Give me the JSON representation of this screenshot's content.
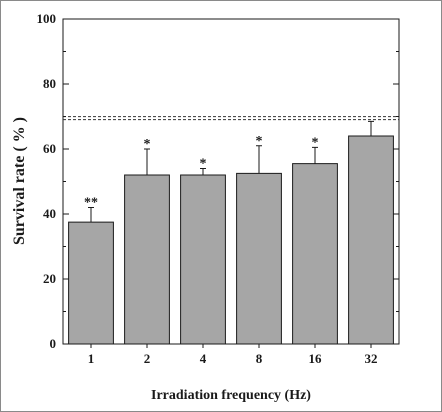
{
  "chart_data": {
    "type": "bar",
    "title": "",
    "xlabel": "Irradiation frequency (Hz)",
    "ylabel": "Survival rate ( % )",
    "categories": [
      "1",
      "2",
      "4",
      "8",
      "16",
      "32"
    ],
    "values": [
      37.5,
      52,
      52,
      52.5,
      55.5,
      64
    ],
    "error": [
      4.5,
      8,
      2,
      8.5,
      5,
      4.5
    ],
    "significance": [
      "**",
      "*",
      "*",
      "*",
      "*",
      ""
    ],
    "ylim": [
      0,
      100
    ],
    "yticks": [
      "0",
      "20",
      "40",
      "60",
      "80",
      "100"
    ],
    "reference_line": 69.5,
    "bar_color": "#a6a6a6",
    "grid": false
  }
}
